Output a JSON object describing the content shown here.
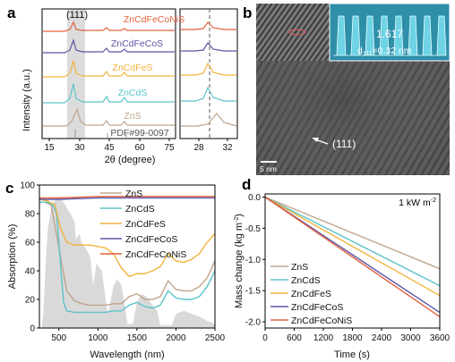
{
  "panel_labels": {
    "a": "a",
    "b": "b",
    "c": "c",
    "d": "d"
  },
  "colors": {
    "ZnS": "#c0a58c",
    "ZnCdS": "#5cc3c9",
    "ZnCdFeS": "#f2b33d",
    "ZnCdFeCoS": "#5b56a6",
    "ZnCdFeCoNiS": "#e4603f",
    "pdf": "#999999",
    "solar": "#d9d9d9"
  },
  "panel_a": {
    "ylabel": "Intensity (a.u.)",
    "xlabel": "2θ (degree)",
    "peak_label": "(111)",
    "reference_label": "PDF#99-0097",
    "series_labels": [
      "ZnCdFeCoNiS",
      "ZnCdFeCoS",
      "ZnCdFeS",
      "ZnCdS",
      "ZnS"
    ],
    "xticks_left": [
      "15",
      "30",
      "45",
      "60",
      "75"
    ],
    "xticks_right": [
      "28",
      "32"
    ]
  },
  "panel_b": {
    "inset_value": "1.617",
    "d_spacing_label": "d",
    "d_spacing_sub": "111",
    "d_spacing_value": "=0.32 nm",
    "plane_label": "(111)",
    "scale_bar": "5 nm"
  },
  "chart_data": [
    {
      "type": "line",
      "panel": "c",
      "xlabel": "Wavelength (nm)",
      "ylabel": "Absorption (%)",
      "xlim": [
        250,
        2500
      ],
      "ylim": [
        0,
        100
      ],
      "xticks": [
        "500",
        "1000",
        "1500",
        "2000",
        "2500"
      ],
      "yticks": [
        "0",
        "20",
        "40",
        "60",
        "80",
        "100"
      ],
      "legend_position": "top-right",
      "series": [
        {
          "name": "ZnS",
          "x": [
            250,
            320,
            400,
            500,
            600,
            700,
            800,
            900,
            1000,
            1100,
            1200,
            1300,
            1400,
            1500,
            1600,
            1700,
            1800,
            1900,
            2000,
            2100,
            2200,
            2300,
            2400,
            2500
          ],
          "y": [
            88,
            88,
            86,
            56,
            26,
            19,
            17,
            16,
            16,
            16,
            17,
            17,
            22,
            24,
            20,
            20,
            22,
            33,
            27,
            26,
            26,
            29,
            35,
            47
          ]
        },
        {
          "name": "ZnCdS",
          "x": [
            250,
            350,
            420,
            470,
            520,
            560,
            600,
            700,
            800,
            900,
            1000,
            1100,
            1200,
            1300,
            1400,
            1500,
            1600,
            1700,
            1800,
            1900,
            2000,
            2100,
            2200,
            2300,
            2400,
            2500
          ],
          "y": [
            88,
            88,
            86,
            80,
            45,
            18,
            12,
            11,
            11,
            11,
            11,
            11,
            12,
            12,
            16,
            18,
            15,
            14,
            16,
            26,
            21,
            20,
            20,
            22,
            29,
            40
          ]
        },
        {
          "name": "ZnCdFeS",
          "x": [
            250,
            350,
            450,
            520,
            600,
            700,
            800,
            900,
            1000,
            1100,
            1200,
            1300,
            1400,
            1500,
            1600,
            1700,
            1800,
            1900,
            2000,
            2100,
            2200,
            2300,
            2400,
            2500
          ],
          "y": [
            90,
            89,
            86,
            70,
            60,
            58,
            58,
            58,
            57,
            56,
            52,
            42,
            36,
            38,
            38,
            40,
            43,
            52,
            47,
            46,
            48,
            52,
            60,
            66
          ]
        },
        {
          "name": "ZnCdFeCoS",
          "x": [
            250,
            500,
            1000,
            1500,
            2000,
            2500
          ],
          "y": [
            90,
            90,
            91,
            91,
            91,
            91
          ]
        },
        {
          "name": "ZnCdFeCoNiS",
          "x": [
            250,
            500,
            1000,
            1500,
            2000,
            2500
          ],
          "y": [
            91,
            91,
            92,
            92,
            92,
            92
          ]
        }
      ]
    },
    {
      "type": "line",
      "panel": "d",
      "annotation": "1 kW m",
      "annotation_sup": "-2",
      "xlabel": "Time (s)",
      "ylabel": "Mass change (kg m",
      "ylabel_sup": "-2",
      "ylabel_end": ")",
      "xlim": [
        0,
        3600
      ],
      "ylim": [
        -2.1,
        0.05
      ],
      "xticks": [
        "0",
        "600",
        "1200",
        "1800",
        "2400",
        "3000",
        "3600"
      ],
      "yticks": [
        "0.0",
        "-0.5",
        "-1.0",
        "-1.5",
        "-2.0"
      ],
      "legend_position": "bottom-left",
      "series": [
        {
          "name": "ZnS",
          "x": [
            0,
            3600
          ],
          "y": [
            0,
            -1.15
          ]
        },
        {
          "name": "ZnCdS",
          "x": [
            0,
            3600
          ],
          "y": [
            0,
            -1.42
          ]
        },
        {
          "name": "ZnCdFeS",
          "x": [
            0,
            3600
          ],
          "y": [
            0,
            -1.58
          ]
        },
        {
          "name": "ZnCdFeCoS",
          "x": [
            0,
            3600
          ],
          "y": [
            0,
            -1.85
          ]
        },
        {
          "name": "ZnCdFeCoNiS",
          "x": [
            0,
            3600
          ],
          "y": [
            0,
            -1.92
          ]
        }
      ]
    }
  ]
}
